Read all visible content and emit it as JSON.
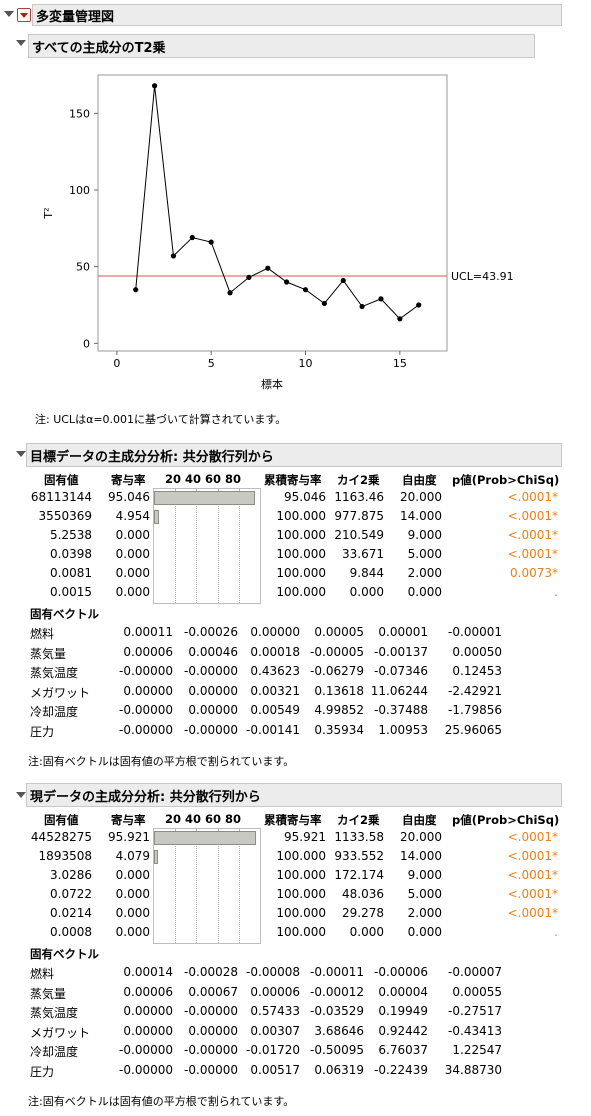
{
  "report": {
    "title": "多変量管理図"
  },
  "t2": {
    "title": "すべての主成分のT2乗",
    "ylabel": "T²",
    "xlabel": "標本",
    "ucl_label": "UCL=43.91",
    "note": "注: UCLはα=0.001に基づいて計算されています。",
    "yticks": [
      "0",
      "50",
      "100",
      "150"
    ],
    "xticks": [
      "0",
      "5",
      "10",
      "15"
    ]
  },
  "chart_data": {
    "type": "line",
    "title": "",
    "xlabel": "標本",
    "ylabel": "T²",
    "x": [
      1,
      2,
      3,
      4,
      5,
      6,
      7,
      8,
      9,
      10,
      11,
      12,
      13,
      14,
      15,
      16
    ],
    "values": [
      35,
      168,
      57,
      69,
      66,
      33,
      43,
      49,
      40,
      35,
      26,
      41,
      24,
      29,
      16,
      25
    ],
    "ucl": 43.91,
    "xlim": [
      -1,
      17.5
    ],
    "ylim": [
      -5,
      175
    ],
    "grid": false
  },
  "pca1": {
    "title": "目標データの主成分分析: 共分散行列から",
    "headers": {
      "eig": "固有値",
      "pct": "寄与率",
      "bar": "20 40 60 80",
      "cum": "累積寄与率",
      "chi": "カイ2乗",
      "df": "自由度",
      "p": "p値(Prob>ChiSq)"
    },
    "bar_pcts": [
      95.046,
      4.954,
      0,
      0,
      0,
      0
    ],
    "rows": [
      {
        "eig": "68113144",
        "pct": "95.046",
        "cum": "95.046",
        "chi": "1163.46",
        "df": "20.000",
        "p": "<.0001*"
      },
      {
        "eig": "3550369",
        "pct": "4.954",
        "cum": "100.000",
        "chi": "977.875",
        "df": "14.000",
        "p": "<.0001*"
      },
      {
        "eig": "5.2538",
        "pct": "0.000",
        "cum": "100.000",
        "chi": "210.549",
        "df": "9.000",
        "p": "<.0001*"
      },
      {
        "eig": "0.0398",
        "pct": "0.000",
        "cum": "100.000",
        "chi": "33.671",
        "df": "5.000",
        "p": "<.0001*"
      },
      {
        "eig": "0.0081",
        "pct": "0.000",
        "cum": "100.000",
        "chi": "9.844",
        "df": "2.000",
        "p": "0.0073*"
      },
      {
        "eig": "0.0015",
        "pct": "0.000",
        "cum": "100.000",
        "chi": "0.000",
        "df": "0.000",
        "p": "."
      }
    ],
    "evec_title": "固有ベクトル",
    "evec_rows": [
      {
        "label": "燃料",
        "v": [
          "0.00011",
          "-0.00026",
          "0.00000",
          "0.00005",
          "0.00001",
          "-0.00001"
        ]
      },
      {
        "label": "蒸気量",
        "v": [
          "0.00006",
          "0.00046",
          "0.00018",
          "-0.00005",
          "-0.00137",
          "0.00050"
        ]
      },
      {
        "label": "蒸気温度",
        "v": [
          "-0.00000",
          "-0.00000",
          "0.43623",
          "-0.06279",
          "-0.07346",
          "0.12453"
        ]
      },
      {
        "label": "メガワット",
        "v": [
          "0.00000",
          "0.00000",
          "0.00321",
          "0.13618",
          "11.06244",
          "-2.42921"
        ]
      },
      {
        "label": "冷却温度",
        "v": [
          "-0.00000",
          "0.00000",
          "0.00549",
          "4.99852",
          "-0.37488",
          "-1.79856"
        ]
      },
      {
        "label": "圧力",
        "v": [
          "-0.00000",
          "-0.00000",
          "-0.00141",
          "0.35934",
          "1.00953",
          "25.96065"
        ]
      }
    ],
    "note": "注:固有ベクトルは固有値の平方根で割られています。"
  },
  "pca2": {
    "title": "現データの主成分分析: 共分散行列から",
    "headers": {
      "eig": "固有値",
      "pct": "寄与率",
      "bar": "20 40 60 80",
      "cum": "累積寄与率",
      "chi": "カイ2乗",
      "df": "自由度",
      "p": "p値(Prob>ChiSq)"
    },
    "bar_pcts": [
      95.921,
      4.079,
      0,
      0,
      0,
      0
    ],
    "rows": [
      {
        "eig": "44528275",
        "pct": "95.921",
        "cum": "95.921",
        "chi": "1133.58",
        "df": "20.000",
        "p": "<.0001*"
      },
      {
        "eig": "1893508",
        "pct": "4.079",
        "cum": "100.000",
        "chi": "933.552",
        "df": "14.000",
        "p": "<.0001*"
      },
      {
        "eig": "3.0286",
        "pct": "0.000",
        "cum": "100.000",
        "chi": "172.174",
        "df": "9.000",
        "p": "<.0001*"
      },
      {
        "eig": "0.0722",
        "pct": "0.000",
        "cum": "100.000",
        "chi": "48.036",
        "df": "5.000",
        "p": "<.0001*"
      },
      {
        "eig": "0.0214",
        "pct": "0.000",
        "cum": "100.000",
        "chi": "29.278",
        "df": "2.000",
        "p": "<.0001*"
      },
      {
        "eig": "0.0008",
        "pct": "0.000",
        "cum": "100.000",
        "chi": "0.000",
        "df": "0.000",
        "p": "."
      }
    ],
    "evec_title": "固有ベクトル",
    "evec_rows": [
      {
        "label": "燃料",
        "v": [
          "0.00014",
          "-0.00028",
          "-0.00008",
          "-0.00011",
          "-0.00006",
          "-0.00007"
        ]
      },
      {
        "label": "蒸気量",
        "v": [
          "0.00006",
          "0.00067",
          "0.00006",
          "-0.00012",
          "0.00004",
          "0.00055"
        ]
      },
      {
        "label": "蒸気温度",
        "v": [
          "0.00000",
          "-0.00000",
          "0.57433",
          "-0.03529",
          "0.19949",
          "-0.27517"
        ]
      },
      {
        "label": "メガワット",
        "v": [
          "0.00000",
          "0.00000",
          "0.00307",
          "3.68646",
          "0.92442",
          "-0.43413"
        ]
      },
      {
        "label": "冷却温度",
        "v": [
          "-0.00000",
          "-0.00000",
          "-0.01720",
          "-0.50095",
          "6.76037",
          "1.22547"
        ]
      },
      {
        "label": "圧力",
        "v": [
          "-0.00000",
          "-0.00000",
          "0.00517",
          "0.06319",
          "-0.22439",
          "34.88730"
        ]
      }
    ],
    "note": "注:固有ベクトルは固有値の平方根で割られています。"
  },
  "colors": {
    "ucl": "#d9534f",
    "pvalue": "#e8811a",
    "bar": "#c9c9c4",
    "header_bg": "#ececec"
  }
}
